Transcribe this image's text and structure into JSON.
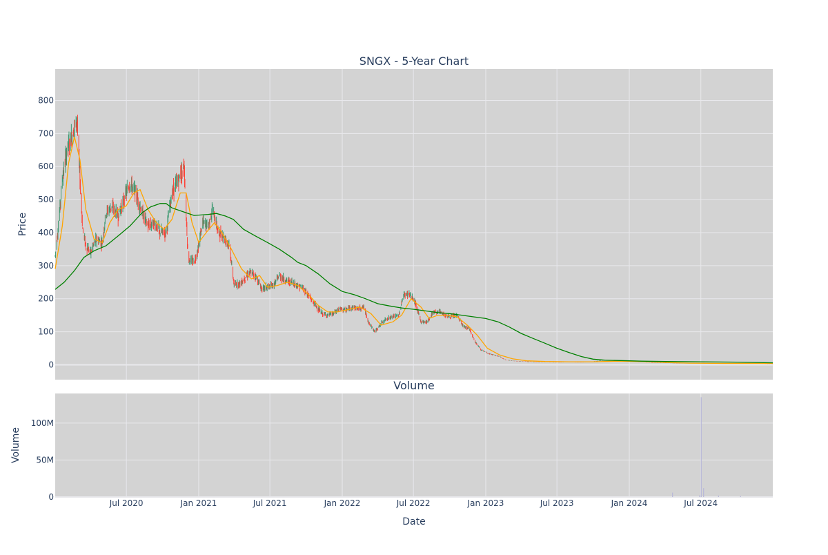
{
  "colors": {
    "plot_bg": "#d3d3d3",
    "grid": "#e8e8ec",
    "up": "#3d9970",
    "down": "#ff4136",
    "ma_short": "#ffa500",
    "ma_long": "#008000",
    "volume": "#b8b8d8",
    "text": "#2a3f5f"
  },
  "chart_data": [
    {
      "type": "candlestick",
      "title": "SNGX - 5-Year Chart",
      "ylabel": "Price",
      "xlabel": "",
      "ylim": [
        -45,
        895
      ],
      "yticks": [
        0,
        100,
        200,
        300,
        400,
        500,
        600,
        700,
        800
      ],
      "xrange": [
        "2020-01-02",
        "2024-12-31"
      ],
      "xticks": [
        {
          "date": "2020-07-01",
          "label": "Jul 2020"
        },
        {
          "date": "2021-01-01",
          "label": "Jan 2021"
        },
        {
          "date": "2021-07-01",
          "label": "Jul 2021"
        },
        {
          "date": "2022-01-01",
          "label": "Jan 2022"
        },
        {
          "date": "2022-07-01",
          "label": "Jul 2022"
        },
        {
          "date": "2023-01-01",
          "label": "Jan 2023"
        },
        {
          "date": "2023-07-01",
          "label": "Jul 2023"
        },
        {
          "date": "2024-01-01",
          "label": "Jan 2024"
        },
        {
          "date": "2024-07-01",
          "label": "Jul 2024"
        }
      ],
      "grid": true,
      "legend": "none",
      "price_path": [
        [
          "2020-01-02",
          330
        ],
        [
          "2020-01-10",
          420
        ],
        [
          "2020-01-20",
          560
        ],
        [
          "2020-02-01",
          650
        ],
        [
          "2020-02-10",
          680
        ],
        [
          "2020-02-20",
          720
        ],
        [
          "2020-02-27",
          740
        ],
        [
          "2020-03-05",
          560
        ],
        [
          "2020-03-12",
          410
        ],
        [
          "2020-03-20",
          360
        ],
        [
          "2020-04-01",
          340
        ],
        [
          "2020-04-15",
          380
        ],
        [
          "2020-05-01",
          370
        ],
        [
          "2020-05-10",
          460
        ],
        [
          "2020-05-25",
          480
        ],
        [
          "2020-06-10",
          450
        ],
        [
          "2020-06-25",
          500
        ],
        [
          "2020-07-10",
          550
        ],
        [
          "2020-07-25",
          520
        ],
        [
          "2020-08-10",
          460
        ],
        [
          "2020-08-25",
          420
        ],
        [
          "2020-09-10",
          430
        ],
        [
          "2020-09-25",
          400
        ],
        [
          "2020-10-10",
          400
        ],
        [
          "2020-10-25",
          520
        ],
        [
          "2020-11-10",
          560
        ],
        [
          "2020-11-25",
          600
        ],
        [
          "2020-12-05",
          320
        ],
        [
          "2020-12-20",
          310
        ],
        [
          "2021-01-01",
          360
        ],
        [
          "2021-01-10",
          430
        ],
        [
          "2021-01-25",
          420
        ],
        [
          "2021-02-05",
          470
        ],
        [
          "2021-02-20",
          400
        ],
        [
          "2021-03-05",
          390
        ],
        [
          "2021-03-20",
          360
        ],
        [
          "2021-04-01",
          240
        ],
        [
          "2021-04-20",
          250
        ],
        [
          "2021-05-10",
          280
        ],
        [
          "2021-05-25",
          270
        ],
        [
          "2021-06-10",
          230
        ],
        [
          "2021-06-25",
          235
        ],
        [
          "2021-07-10",
          240
        ],
        [
          "2021-07-25",
          270
        ],
        [
          "2021-08-10",
          255
        ],
        [
          "2021-08-25",
          250
        ],
        [
          "2021-09-10",
          240
        ],
        [
          "2021-09-25",
          230
        ],
        [
          "2021-10-10",
          205
        ],
        [
          "2021-10-25",
          180
        ],
        [
          "2021-11-10",
          155
        ],
        [
          "2021-11-25",
          150
        ],
        [
          "2021-12-10",
          155
        ],
        [
          "2021-12-25",
          170
        ],
        [
          "2022-01-10",
          165
        ],
        [
          "2022-01-25",
          175
        ],
        [
          "2022-02-10",
          170
        ],
        [
          "2022-02-25",
          175
        ],
        [
          "2022-03-10",
          125
        ],
        [
          "2022-03-25",
          100
        ],
        [
          "2022-04-10",
          125
        ],
        [
          "2022-04-25",
          140
        ],
        [
          "2022-05-10",
          145
        ],
        [
          "2022-05-25",
          150
        ],
        [
          "2022-06-05",
          210
        ],
        [
          "2022-06-20",
          215
        ],
        [
          "2022-07-05",
          190
        ],
        [
          "2022-07-20",
          130
        ],
        [
          "2022-08-05",
          130
        ],
        [
          "2022-08-20",
          160
        ],
        [
          "2022-09-05",
          160
        ],
        [
          "2022-09-20",
          150
        ],
        [
          "2022-10-05",
          145
        ],
        [
          "2022-10-20",
          150
        ],
        [
          "2022-11-05",
          115
        ],
        [
          "2022-11-20",
          110
        ],
        [
          "2022-12-05",
          70
        ],
        [
          "2022-12-20",
          45
        ],
        [
          "2023-01-05",
          35
        ],
        [
          "2023-01-20",
          30
        ],
        [
          "2023-02-05",
          25
        ],
        [
          "2023-02-20",
          15
        ],
        [
          "2023-03-10",
          12
        ],
        [
          "2023-04-01",
          10
        ],
        [
          "2023-05-01",
          9
        ],
        [
          "2023-06-01",
          9
        ],
        [
          "2023-07-01",
          8
        ],
        [
          "2023-08-01",
          9
        ],
        [
          "2023-09-01",
          8
        ],
        [
          "2023-10-01",
          10
        ],
        [
          "2023-11-01",
          14
        ],
        [
          "2023-12-01",
          12
        ],
        [
          "2024-01-01",
          11
        ],
        [
          "2024-02-01",
          9
        ],
        [
          "2024-03-01",
          7
        ],
        [
          "2024-04-01",
          6
        ],
        [
          "2024-05-01",
          5
        ],
        [
          "2024-06-01",
          5
        ],
        [
          "2024-07-01",
          5
        ],
        [
          "2024-08-01",
          4
        ],
        [
          "2024-09-01",
          4
        ],
        [
          "2024-10-01",
          4
        ],
        [
          "2024-11-01",
          4
        ],
        [
          "2024-12-31",
          3
        ]
      ],
      "series": [
        {
          "color": "#ffa500",
          "values": [
            [
              "2020-01-02",
              290
            ],
            [
              "2020-01-20",
              420
            ],
            [
              "2020-02-05",
              610
            ],
            [
              "2020-02-20",
              690
            ],
            [
              "2020-03-05",
              620
            ],
            [
              "2020-03-20",
              470
            ],
            [
              "2020-04-10",
              380
            ],
            [
              "2020-05-01",
              370
            ],
            [
              "2020-05-20",
              430
            ],
            [
              "2020-06-10",
              470
            ],
            [
              "2020-06-30",
              480
            ],
            [
              "2020-07-20",
              520
            ],
            [
              "2020-08-05",
              530
            ],
            [
              "2020-08-25",
              470
            ],
            [
              "2020-09-15",
              430
            ],
            [
              "2020-10-05",
              410
            ],
            [
              "2020-10-25",
              440
            ],
            [
              "2020-11-15",
              520
            ],
            [
              "2020-11-30",
              520
            ],
            [
              "2020-12-15",
              430
            ],
            [
              "2021-01-01",
              370
            ],
            [
              "2021-01-20",
              400
            ],
            [
              "2021-02-10",
              430
            ],
            [
              "2021-03-01",
              400
            ],
            [
              "2021-03-25",
              350
            ],
            [
              "2021-04-20",
              290
            ],
            [
              "2021-05-15",
              260
            ],
            [
              "2021-06-05",
              270
            ],
            [
              "2021-06-25",
              235
            ],
            [
              "2021-07-20",
              240
            ],
            [
              "2021-08-15",
              250
            ],
            [
              "2021-09-10",
              240
            ],
            [
              "2021-10-05",
              215
            ],
            [
              "2021-11-01",
              180
            ],
            [
              "2021-11-25",
              160
            ],
            [
              "2021-12-20",
              160
            ],
            [
              "2022-01-20",
              168
            ],
            [
              "2022-02-15",
              175
            ],
            [
              "2022-03-15",
              155
            ],
            [
              "2022-04-10",
              120
            ],
            [
              "2022-05-10",
              130
            ],
            [
              "2022-06-01",
              150
            ],
            [
              "2022-06-25",
              200
            ],
            [
              "2022-07-20",
              175
            ],
            [
              "2022-08-10",
              140
            ],
            [
              "2022-09-01",
              150
            ],
            [
              "2022-09-25",
              150
            ],
            [
              "2022-10-20",
              145
            ],
            [
              "2022-11-15",
              120
            ],
            [
              "2022-12-10",
              90
            ],
            [
              "2023-01-05",
              50
            ],
            [
              "2023-02-05",
              30
            ],
            [
              "2023-03-10",
              18
            ],
            [
              "2023-04-15",
              12
            ],
            [
              "2023-06-01",
              10
            ],
            [
              "2023-08-01",
              9
            ],
            [
              "2023-10-01",
              9
            ],
            [
              "2023-12-01",
              11
            ],
            [
              "2024-02-01",
              10
            ],
            [
              "2024-04-01",
              7
            ],
            [
              "2024-06-01",
              5
            ],
            [
              "2024-09-01",
              4
            ],
            [
              "2024-12-31",
              4
            ]
          ]
        },
        {
          "color": "#008000",
          "values": [
            [
              "2020-01-02",
              228
            ],
            [
              "2020-01-25",
              250
            ],
            [
              "2020-02-20",
              285
            ],
            [
              "2020-03-15",
              325
            ],
            [
              "2020-04-10",
              345
            ],
            [
              "2020-05-10",
              360
            ],
            [
              "2020-06-10",
              390
            ],
            [
              "2020-07-10",
              420
            ],
            [
              "2020-08-10",
              460
            ],
            [
              "2020-09-01",
              478
            ],
            [
              "2020-09-25",
              488
            ],
            [
              "2020-10-10",
              488
            ],
            [
              "2020-10-25",
              475
            ],
            [
              "2020-11-25",
              462
            ],
            [
              "2020-12-20",
              452
            ],
            [
              "2021-01-25",
              455
            ],
            [
              "2021-02-15",
              458
            ],
            [
              "2021-03-10",
              450
            ],
            [
              "2021-03-30",
              440
            ],
            [
              "2021-04-25",
              410
            ],
            [
              "2021-05-25",
              390
            ],
            [
              "2021-06-25",
              370
            ],
            [
              "2021-07-25",
              350
            ],
            [
              "2021-08-25",
              325
            ],
            [
              "2021-09-10",
              310
            ],
            [
              "2021-10-01",
              300
            ],
            [
              "2021-11-01",
              275
            ],
            [
              "2021-12-01",
              245
            ],
            [
              "2022-01-01",
              222
            ],
            [
              "2022-02-01",
              212
            ],
            [
              "2022-03-01",
              200
            ],
            [
              "2022-04-01",
              185
            ],
            [
              "2022-05-01",
              178
            ],
            [
              "2022-06-01",
              172
            ],
            [
              "2022-07-01",
              168
            ],
            [
              "2022-08-01",
              163
            ],
            [
              "2022-09-01",
              158
            ],
            [
              "2022-10-01",
              155
            ],
            [
              "2022-11-01",
              150
            ],
            [
              "2022-12-01",
              145
            ],
            [
              "2023-01-01",
              140
            ],
            [
              "2023-02-01",
              130
            ],
            [
              "2023-03-01",
              115
            ],
            [
              "2023-04-01",
              95
            ],
            [
              "2023-05-01",
              80
            ],
            [
              "2023-06-01",
              65
            ],
            [
              "2023-07-01",
              50
            ],
            [
              "2023-08-01",
              37
            ],
            [
              "2023-09-01",
              25
            ],
            [
              "2023-10-01",
              17
            ],
            [
              "2023-11-01",
              14
            ],
            [
              "2023-12-01",
              13
            ],
            [
              "2024-02-01",
              11
            ],
            [
              "2024-04-01",
              10
            ],
            [
              "2024-07-01",
              9
            ],
            [
              "2024-10-01",
              8
            ],
            [
              "2024-12-31",
              6
            ]
          ]
        }
      ]
    },
    {
      "type": "bar",
      "title": "Volume",
      "ylabel": "Volume",
      "xlabel": "Date",
      "ylim": [
        0,
        140000000
      ],
      "yticks": [
        {
          "value": 0,
          "label": "0"
        },
        {
          "value": 50000000,
          "label": "50M"
        },
        {
          "value": 100000000,
          "label": "100M"
        }
      ],
      "grid": true,
      "legend": "none",
      "bars": [
        {
          "date": "2024-04-20",
          "value": 6000000
        },
        {
          "date": "2024-06-28",
          "value": 2500000
        },
        {
          "date": "2024-07-02",
          "value": 135000000
        },
        {
          "date": "2024-07-08",
          "value": 12000000
        },
        {
          "date": "2024-08-15",
          "value": 2000000
        },
        {
          "date": "2024-10-10",
          "value": 1500000
        }
      ]
    }
  ]
}
